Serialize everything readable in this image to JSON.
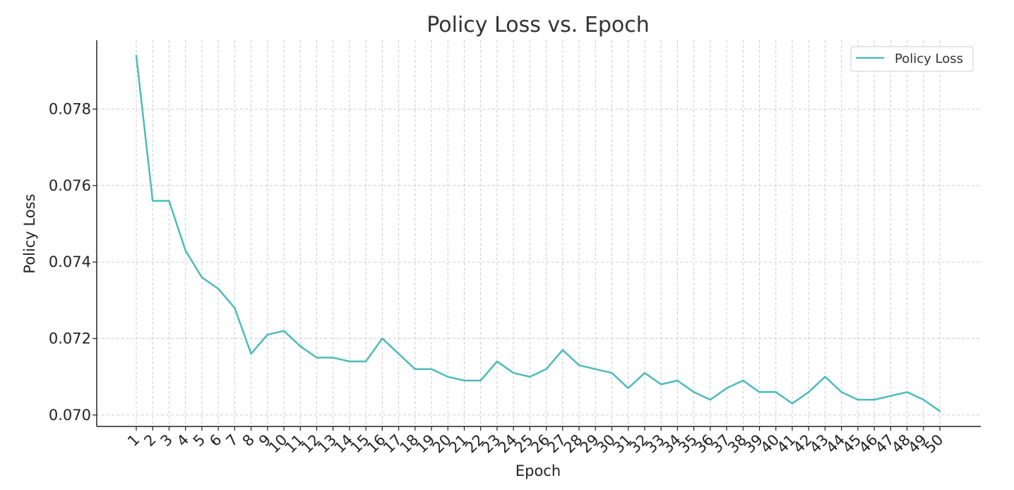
{
  "chart_data": {
    "type": "line",
    "title": "Policy Loss vs. Epoch",
    "xlabel": "Epoch",
    "ylabel": "Policy Loss",
    "ylim": [
      0.0697,
      0.0798
    ],
    "yticks": [
      0.07,
      0.072,
      0.074,
      0.076,
      0.078
    ],
    "ytick_labels": [
      "0.070",
      "0.072",
      "0.074",
      "0.076",
      "0.078"
    ],
    "x": [
      1,
      2,
      3,
      4,
      5,
      6,
      7,
      8,
      9,
      10,
      11,
      12,
      13,
      14,
      15,
      16,
      17,
      18,
      19,
      20,
      21,
      22,
      23,
      24,
      25,
      26,
      27,
      28,
      29,
      30,
      31,
      32,
      33,
      34,
      35,
      36,
      37,
      38,
      39,
      40,
      41,
      42,
      43,
      44,
      45,
      46,
      47,
      48,
      49,
      50
    ],
    "xtick_labels": [
      "1",
      "2",
      "3",
      "4",
      "5",
      "6",
      "7",
      "8",
      "9",
      "10",
      "11",
      "12",
      "13",
      "14",
      "15",
      "16",
      "17",
      "18",
      "19",
      "20",
      "21",
      "22",
      "23",
      "24",
      "25",
      "26",
      "27",
      "28",
      "29",
      "30",
      "31",
      "32",
      "33",
      "34",
      "35",
      "36",
      "37",
      "38",
      "39",
      "40",
      "41",
      "42",
      "43",
      "44",
      "45",
      "46",
      "47",
      "48",
      "49",
      "50"
    ],
    "series": [
      {
        "name": "Policy Loss",
        "color": "#4dbbbb",
        "values": [
          0.0794,
          0.0756,
          0.0756,
          0.0743,
          0.0736,
          0.0733,
          0.0728,
          0.0716,
          0.0721,
          0.0722,
          0.0718,
          0.0715,
          0.0715,
          0.0714,
          0.0714,
          0.072,
          0.0716,
          0.0712,
          0.0712,
          0.071,
          0.0709,
          0.0709,
          0.0714,
          0.0711,
          0.071,
          0.0712,
          0.0717,
          0.0713,
          0.0712,
          0.0711,
          0.0707,
          0.0711,
          0.0708,
          0.0709,
          0.0706,
          0.0704,
          0.0707,
          0.0709,
          0.0706,
          0.0706,
          0.0703,
          0.0706,
          0.071,
          0.0706,
          0.0704,
          0.0704,
          0.0705,
          0.0706,
          0.0704,
          0.0701
        ]
      }
    ],
    "grid": true,
    "legend_position": "top-right"
  }
}
